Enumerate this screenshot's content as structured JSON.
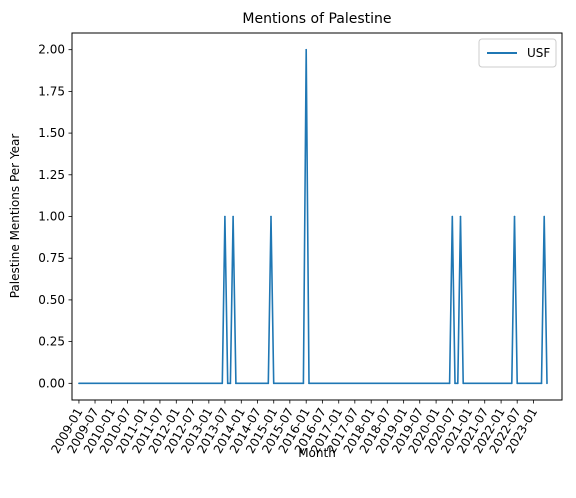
{
  "chart_data": {
    "type": "line",
    "title": "Mentions of Palestine",
    "xlabel": "Month",
    "ylabel": "Palestine Mentions Per Year",
    "x_tick_labels": [
      "2009-01",
      "2009-07",
      "2010-01",
      "2010-07",
      "2011-01",
      "2011-07",
      "2012-01",
      "2012-07",
      "2013-01",
      "2013-07",
      "2014-01",
      "2014-07",
      "2015-01",
      "2015-07",
      "2016-01",
      "2016-07",
      "2017-01",
      "2017-07",
      "2018-01",
      "2018-07",
      "2019-01",
      "2019-07",
      "2020-01",
      "2020-07",
      "2021-01",
      "2021-07",
      "2022-01",
      "2022-07",
      "2023-01"
    ],
    "y_ticks": [
      0.0,
      0.25,
      0.5,
      0.75,
      1.0,
      1.25,
      1.5,
      1.75,
      2.0
    ],
    "y_tick_labels": [
      "0.00",
      "0.25",
      "0.50",
      "0.75",
      "1.00",
      "1.25",
      "1.50",
      "1.75",
      "2.00"
    ],
    "xlim": [
      "2008-10-15",
      "2023-11-17"
    ],
    "ylim": [
      -0.1,
      2.1
    ],
    "grid": false,
    "legend_position": "top-right",
    "series": [
      {
        "name": "USF",
        "color": "#1f77b4",
        "x": [
          "2009-01",
          "2013-06",
          "2013-07",
          "2013-08",
          "2013-09",
          "2013-10",
          "2013-11",
          "2014-11",
          "2014-12",
          "2015-01",
          "2015-12",
          "2016-01",
          "2016-02",
          "2020-06",
          "2020-07",
          "2020-08",
          "2020-09",
          "2020-10",
          "2020-11",
          "2022-05",
          "2022-06",
          "2022-07",
          "2023-04",
          "2023-05",
          "2023-06"
        ],
        "y": [
          0,
          0,
          1,
          0,
          0,
          1,
          0,
          0,
          1,
          0,
          0,
          2,
          0,
          0,
          1,
          0,
          0,
          1,
          0,
          0,
          1,
          0,
          0,
          1,
          0
        ]
      }
    ]
  }
}
